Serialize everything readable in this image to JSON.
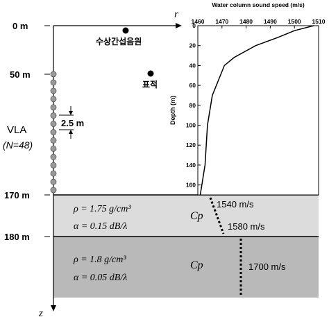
{
  "depth_labels": {
    "d0": "0 m",
    "d50": "50 m",
    "d170": "170 m",
    "d180": "180 m"
  },
  "axis_labels": {
    "r": "r",
    "z": "z"
  },
  "array": {
    "name": "VLA",
    "count": "(N=48)",
    "spacing": "2.5 m",
    "element_count": 15
  },
  "sources": {
    "interferer": "수상간섭음원",
    "target": "표적"
  },
  "layer1": {
    "rho": "ρ = 1.75 g/cm³",
    "alpha": "α = 0.15 dB/λ",
    "cp_label": "Cp",
    "cp_top": "1540 m/s",
    "cp_bottom": "1580 m/s",
    "color": "#dcdcdc"
  },
  "layer2": {
    "rho": "ρ = 1.8 g/cm³",
    "alpha": "α = 0.05 dB/λ",
    "cp_label": "Cp",
    "cp_value": "1700 m/s",
    "color": "#b9b9b9"
  },
  "chart_data": {
    "type": "line",
    "title": "Water column sound speed (m/s)",
    "ylabel": "Depth (m)",
    "x_ticks": [
      1460,
      1470,
      1480,
      1490,
      1500,
      1510
    ],
    "y_ticks": [
      0,
      20,
      40,
      60,
      80,
      100,
      120,
      140,
      160
    ],
    "xlim": [
      1460,
      1510
    ],
    "ylim": [
      0,
      170
    ],
    "series": [
      {
        "x": [
          1508,
          1500,
          1493,
          1484,
          1475,
          1471,
          1466,
          1464,
          1463,
          1461
        ],
        "y": [
          0,
          5,
          12,
          20,
          32,
          40,
          70,
          100,
          140,
          170
        ]
      }
    ]
  }
}
